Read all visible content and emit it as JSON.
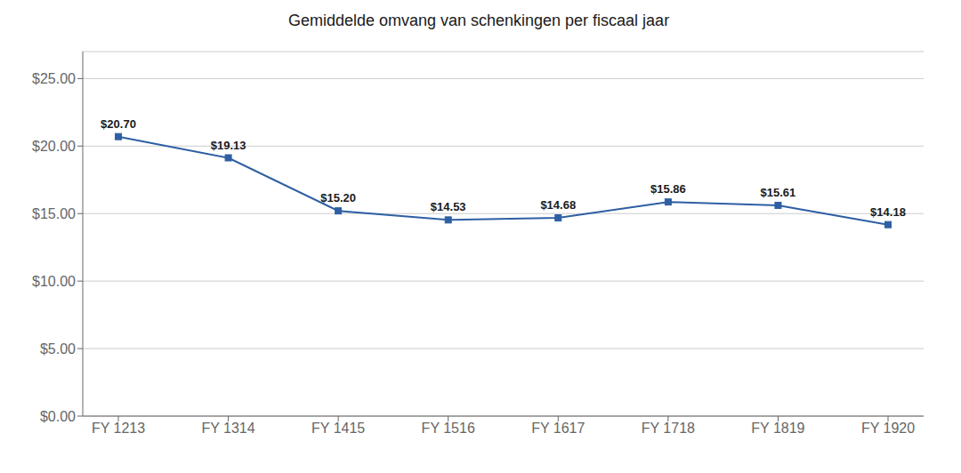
{
  "chart_data": {
    "type": "line",
    "title": "Gemiddelde omvang van schenkingen per fiscaal jaar",
    "categories": [
      "FY 1213",
      "FY 1314",
      "FY 1415",
      "FY 1516",
      "FY 1617",
      "FY 1718",
      "FY 1819",
      "FY 1920"
    ],
    "values": [
      20.7,
      19.13,
      15.2,
      14.53,
      14.68,
      15.86,
      15.61,
      14.18
    ],
    "value_labels": [
      "$20.70",
      "$19.13",
      "$15.20",
      "$14.53",
      "$14.68",
      "$15.86",
      "$15.61",
      "$14.18"
    ],
    "data_labels": true,
    "color": "#2E5FA3",
    "marker": "square",
    "ylim": [
      0,
      27
    ],
    "yticks": [
      {
        "value": 0,
        "label": "$0.00"
      },
      {
        "value": 5,
        "label": "$5.00"
      },
      {
        "value": 10,
        "label": "$10.00"
      },
      {
        "value": 15,
        "label": "$15.00"
      },
      {
        "value": 20,
        "label": "$20.00"
      },
      {
        "value": 25,
        "label": "$25.00"
      }
    ],
    "grid": true
  }
}
